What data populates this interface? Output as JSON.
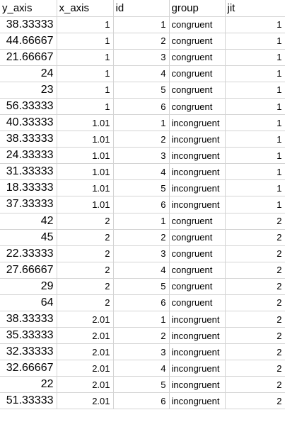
{
  "sheet": {
    "headers": [
      "y_axis",
      "x_axis",
      "id",
      "group",
      "jit"
    ],
    "rows": [
      {
        "y_axis": "38.33333",
        "x_axis": "1",
        "id": "1",
        "group": "congruent",
        "jit": "1"
      },
      {
        "y_axis": "44.66667",
        "x_axis": "1",
        "id": "2",
        "group": "congruent",
        "jit": "1"
      },
      {
        "y_axis": "21.66667",
        "x_axis": "1",
        "id": "3",
        "group": "congruent",
        "jit": "1"
      },
      {
        "y_axis": "24",
        "x_axis": "1",
        "id": "4",
        "group": "congruent",
        "jit": "1"
      },
      {
        "y_axis": "23",
        "x_axis": "1",
        "id": "5",
        "group": "congruent",
        "jit": "1"
      },
      {
        "y_axis": "56.33333",
        "x_axis": "1",
        "id": "6",
        "group": "congruent",
        "jit": "1"
      },
      {
        "y_axis": "40.33333",
        "x_axis": "1.01",
        "id": "1",
        "group": "incongruent",
        "jit": "1"
      },
      {
        "y_axis": "38.33333",
        "x_axis": "1.01",
        "id": "2",
        "group": "incongruent",
        "jit": "1"
      },
      {
        "y_axis": "24.33333",
        "x_axis": "1.01",
        "id": "3",
        "group": "incongruent",
        "jit": "1"
      },
      {
        "y_axis": "31.33333",
        "x_axis": "1.01",
        "id": "4",
        "group": "incongruent",
        "jit": "1"
      },
      {
        "y_axis": "18.33333",
        "x_axis": "1.01",
        "id": "5",
        "group": "incongruent",
        "jit": "1"
      },
      {
        "y_axis": "37.33333",
        "x_axis": "1.01",
        "id": "6",
        "group": "incongruent",
        "jit": "1"
      },
      {
        "y_axis": "42",
        "x_axis": "2",
        "id": "1",
        "group": "congruent",
        "jit": "2"
      },
      {
        "y_axis": "45",
        "x_axis": "2",
        "id": "2",
        "group": "congruent",
        "jit": "2"
      },
      {
        "y_axis": "22.33333",
        "x_axis": "2",
        "id": "3",
        "group": "congruent",
        "jit": "2"
      },
      {
        "y_axis": "27.66667",
        "x_axis": "2",
        "id": "4",
        "group": "congruent",
        "jit": "2"
      },
      {
        "y_axis": "29",
        "x_axis": "2",
        "id": "5",
        "group": "congruent",
        "jit": "2"
      },
      {
        "y_axis": "64",
        "x_axis": "2",
        "id": "6",
        "group": "congruent",
        "jit": "2"
      },
      {
        "y_axis": "38.33333",
        "x_axis": "2.01",
        "id": "1",
        "group": "incongruent",
        "jit": "2"
      },
      {
        "y_axis": "35.33333",
        "x_axis": "2.01",
        "id": "2",
        "group": "incongruent",
        "jit": "2"
      },
      {
        "y_axis": "32.33333",
        "x_axis": "2.01",
        "id": "3",
        "group": "incongruent",
        "jit": "2"
      },
      {
        "y_axis": "32.66667",
        "x_axis": "2.01",
        "id": "4",
        "group": "incongruent",
        "jit": "2"
      },
      {
        "y_axis": "22",
        "x_axis": "2.01",
        "id": "5",
        "group": "incongruent",
        "jit": "2"
      },
      {
        "y_axis": "51.33333",
        "x_axis": "2.01",
        "id": "6",
        "group": "incongruent",
        "jit": "2"
      }
    ]
  },
  "colors": {
    "gridline": "#d4d4d4",
    "text": "#000000",
    "background": "#ffffff"
  }
}
